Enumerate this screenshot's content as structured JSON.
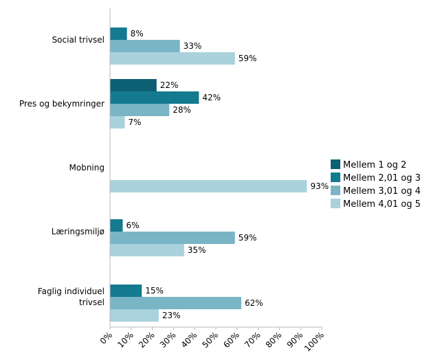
{
  "chart_data": {
    "type": "bar",
    "orientation": "horizontal",
    "categories": [
      "Social trivsel",
      "Pres og bekymringer",
      "Mobning",
      "Læringsmiljø",
      "Faglig individuel trivsel"
    ],
    "series": [
      {
        "name": "Mellem 1 og 2",
        "values": [
          null,
          22,
          null,
          null,
          null
        ],
        "color": "#0d5f73"
      },
      {
        "name": "Mellem 2,01 og 3",
        "values": [
          8,
          42,
          null,
          6,
          15
        ],
        "color": "#147a8f"
      },
      {
        "name": "Mellem 3,01 og 4",
        "values": [
          33,
          28,
          null,
          59,
          62
        ],
        "color": "#7ab5c6"
      },
      {
        "name": "Mellem 4,01 og 5",
        "values": [
          59,
          7,
          93,
          35,
          23
        ],
        "color": "#a9d2dd"
      }
    ],
    "x_ticks": [
      "0%",
      "10%",
      "20%",
      "30%",
      "40%",
      "50%",
      "60%",
      "70%",
      "80%",
      "90%",
      "100%"
    ],
    "xlim": [
      0,
      100
    ],
    "value_suffix": "%",
    "grid": false,
    "legend_position": "right"
  }
}
